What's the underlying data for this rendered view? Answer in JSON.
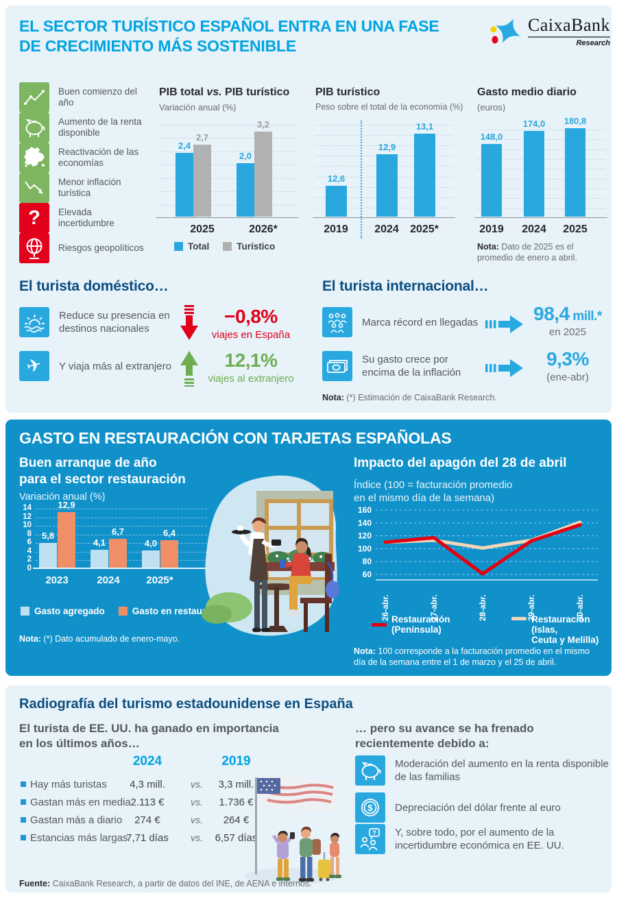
{
  "colors": {
    "accent_cyan": "#00a3e0",
    "bar_blue": "#29a8e0",
    "bar_gray": "#b1b1b1",
    "navy_heading": "#0b4d7f",
    "text_gray": "#55585e",
    "icon_green": "#7db561",
    "icon_red": "#e2001a",
    "panel_light": "#e7f2f9",
    "panel_blue": "#1191ca",
    "salmon": "#f08e68",
    "light_blue_bar": "#bfe0f1",
    "cream_line": "#f3d6b8",
    "red_line": "#e3000f"
  },
  "header": {
    "title_line1": "EL SECTOR TURÍSTICO ESPAÑOL ENTRA EN UNA FASE",
    "title_line2": "DE CRECIMIENTO MÁS SOSTENIBLE",
    "logo_brand": "CaixaBank",
    "logo_sub": "Research"
  },
  "highlights": [
    {
      "icon": "line-chart-up-icon",
      "tone": "green",
      "label": "Buen comienzo del año"
    },
    {
      "icon": "piggy-bank-icon",
      "tone": "green",
      "label": "Aumento de la renta disponible"
    },
    {
      "icon": "europe-map-icon",
      "tone": "green",
      "label": "Reactivación de las economías"
    },
    {
      "icon": "line-chart-down-icon",
      "tone": "green",
      "label": "Menor inflación turística"
    },
    {
      "icon": "question-mark-icon",
      "tone": "red",
      "label": "Elevada incertidumbre"
    },
    {
      "icon": "globe-icon",
      "tone": "red",
      "label": "Riesgos geopolíticos"
    }
  ],
  "chart_data": [
    {
      "id": "pib-total-vs-turistico",
      "type": "bar",
      "title_pre": "PIB total ",
      "title_vs": "vs.",
      "title_post": " PIB turístico",
      "subtitle": "Variación anual (%)",
      "categories": [
        "2025",
        "2026*"
      ],
      "series": [
        {
          "name": "Total",
          "color": "#29a8e0",
          "values": [
            2.4,
            2.0
          ],
          "labels": [
            "2,4",
            "2,0"
          ]
        },
        {
          "name": "Turístico",
          "color": "#b1b1b1",
          "values": [
            2.7,
            3.2
          ],
          "labels": [
            "2,7",
            "3,2"
          ]
        }
      ],
      "ylim": [
        0,
        3.5
      ],
      "grid": "dashed",
      "legend_position": "bottom"
    },
    {
      "id": "pib-turistico-peso",
      "type": "bar",
      "title": "PIB turístico",
      "subtitle": "Peso sobre el total de la economía (%)",
      "categories": [
        "2019",
        "2024",
        "2025*"
      ],
      "values": [
        12.6,
        12.9,
        13.1
      ],
      "labels": [
        "12,6",
        "12,9",
        "13,1"
      ],
      "ylim": [
        12.3,
        13.2
      ],
      "separator": "dotted vertical line between 2019 and 2024"
    },
    {
      "id": "gasto-medio-diario",
      "type": "bar",
      "title": "Gasto medio diario",
      "subtitle": "(euros)",
      "categories": [
        "2019",
        "2024",
        "2025"
      ],
      "values": [
        148.0,
        174.0,
        180.8
      ],
      "labels": [
        "148,0",
        "174,0",
        "180,8"
      ],
      "ylim": [
        0,
        190
      ],
      "note_label": "Nota:",
      "note": " Dato de 2025 es el promedio de enero a abril."
    },
    {
      "id": "restauracion-variacion-anual",
      "type": "bar",
      "title_line1": "Buen arranque de año",
      "title_line2": "para el sector restauración",
      "subtitle": "Variación anual (%)",
      "categories": [
        "2023",
        "2024",
        "2025*"
      ],
      "series": [
        {
          "name": "Gasto agregado",
          "color": "#bfe0f1",
          "values": [
            5.8,
            4.1,
            4.0
          ],
          "labels": [
            "5,8",
            "4,1",
            "4,0"
          ]
        },
        {
          "name": "Gasto en restauración",
          "color": "#f08e68",
          "values": [
            12.9,
            6.7,
            6.4
          ],
          "labels": [
            "12,9",
            "6,7",
            "6,4"
          ]
        }
      ],
      "ylim": [
        0,
        14
      ],
      "yticks": [
        0,
        2,
        4,
        6,
        8,
        10,
        12,
        14
      ],
      "note_label": "Nota:",
      "note": " (*) Dato acumulado de enero-mayo."
    },
    {
      "id": "apagon-28-abril",
      "type": "line",
      "title": "Impacto del apagón del 28 de abril",
      "subtitle_line1": "Índice (100 = facturación promedio",
      "subtitle_line2": "en el mismo día de la semana)",
      "x": [
        "26-abr.",
        "27-abr.",
        "28-abr.",
        "29-abr.",
        "30-abr."
      ],
      "series": [
        {
          "name": "Restauración (Península)",
          "color": "#e3000f",
          "values": [
            110,
            117,
            61,
            112,
            137
          ]
        },
        {
          "name": "Restauración (Islas, Ceuta y Melilla)",
          "color": "#f3d6b8",
          "values": [
            110,
            113,
            101,
            113,
            141
          ]
        }
      ],
      "ylim": [
        55,
        165
      ],
      "yticks": [
        60,
        80,
        100,
        120,
        140,
        160
      ],
      "legend_1": "Restauración (Península)",
      "legend_2_line1": "Restauración (Islas,",
      "legend_2_line2": "Ceuta y Melilla)",
      "note_label": "Nota:",
      "note": " 100 corresponde a la facturación promedio en el mismo día de la semana entre el 1 de marzo y el 25 de abril."
    }
  ],
  "domestic": {
    "heading": "El turista doméstico…",
    "items": [
      {
        "icon": "sun-sea-icon",
        "text": "Reduce su presencia en destinos nacionales",
        "direction": "down",
        "value": "−0,8%",
        "caption": "viajes en España"
      },
      {
        "icon": "airplane-icon",
        "text": "Y viaja más al extranjero",
        "direction": "up",
        "value": "12,1%",
        "caption": "viajes al extranjero"
      }
    ]
  },
  "international": {
    "heading": "El turista internacional…",
    "items": [
      {
        "icon": "crowd-icon",
        "text": "Marca récord en llegadas",
        "value": "98,4",
        "value_suffix": " mill.*",
        "caption": "en 2025"
      },
      {
        "icon": "banknotes-icon",
        "text": "Su gasto crece por encima de la inflación",
        "value": "9,3%",
        "value_suffix": "",
        "caption": "(ene-abr)"
      }
    ],
    "note_label": "Nota:",
    "note": " (*) Estimación de CaixaBank Research."
  },
  "restauracion_title": "GASTO EN RESTAURACIÓN CON TARJETAS ESPAÑOLAS",
  "usa": {
    "title": "Radiografía del turismo estadounidense en España",
    "left_heading_line1": "El turista de EE. UU. ha ganado en importancia",
    "left_heading_line2": "en los últimos años…",
    "table": {
      "col_2024": "2024",
      "col_2019": "2019",
      "vs": "vs.",
      "rows": [
        {
          "label": "Hay más turistas",
          "v2024": "4,3 mill.",
          "v2019": "3,3 mill."
        },
        {
          "label": "Gastan más en media",
          "v2024": "2.113 €",
          "v2019": "1.736 €"
        },
        {
          "label": "Gastan más a diario",
          "v2024": "274 €",
          "v2019": "264 €"
        },
        {
          "label": "Estancias más largas",
          "v2024": "7,71 días",
          "v2019": "6,57 días"
        }
      ]
    },
    "right_heading_line1": "… pero su avance se ha frenado",
    "right_heading_line2": "recientemente debido a:",
    "reasons": [
      {
        "icon": "piggy-bank-icon",
        "text": "Moderación del aumento en la renta disponible de las familias"
      },
      {
        "icon": "dollar-coin-icon",
        "text": "Depreciación del dólar frente al euro"
      },
      {
        "icon": "uncertainty-people-icon",
        "text": "Y, sobre todo, por el aumento de la incertidumbre económica en EE. UU."
      }
    ]
  },
  "footer": {
    "label": "Fuente:",
    "text": " CaixaBank Research, a partir de datos del INE, de AENA e internos."
  }
}
